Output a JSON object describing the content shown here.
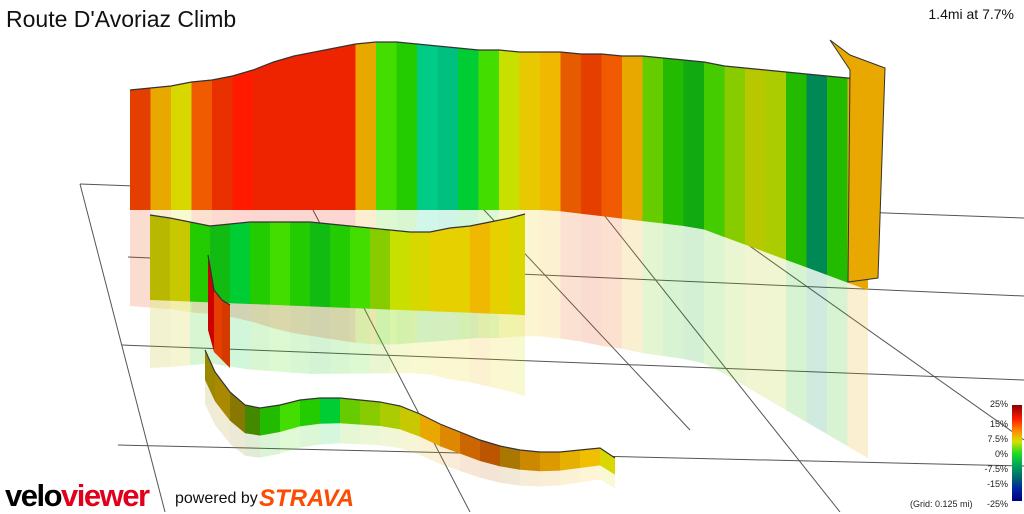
{
  "title": "Route D'Avoriaz Climb",
  "summary": "1.4mi at 7.7%",
  "legend": {
    "ticks": [
      "25%",
      "15%",
      "7.5%",
      "0%",
      "-7.5%",
      "-15%",
      "-25%"
    ],
    "grid_note": "(Grid: 0.125 mi)"
  },
  "branding": {
    "logo_part1": "velo",
    "logo_part2": "viewer",
    "powered_by": "powered by",
    "strava": "STRAVA"
  },
  "colors": {
    "logo_red": "#e0001b",
    "strava_orange": "#fc4c02",
    "grid": "#555555"
  },
  "chart_data": {
    "type": "3d-gradient-profile",
    "title": "Route D'Avoriaz Climb",
    "distance_mi": 1.4,
    "avg_gradient_pct": 7.7,
    "grid_spacing_mi": 0.125,
    "color_scale_pct": [
      -25,
      -15,
      -7.5,
      0,
      7.5,
      15,
      25
    ]
  }
}
